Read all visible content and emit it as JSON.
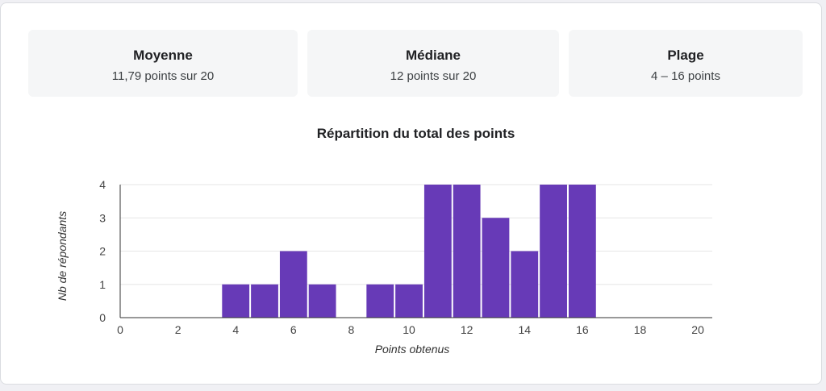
{
  "stats": [
    {
      "title": "Moyenne",
      "value": "11,79 points sur 20"
    },
    {
      "title": "Médiane",
      "value": "12 points sur 20"
    },
    {
      "title": "Plage",
      "value": "4 – 16 points"
    }
  ],
  "colors": {
    "bar": "#673ab7",
    "grid": "#e6e6e6",
    "axis": "#333333"
  },
  "chart_data": {
    "type": "bar",
    "title": "Répartition du total des points",
    "xlabel": "Points obtenus",
    "ylabel": "Nb de répondants",
    "x": [
      4,
      5,
      6,
      7,
      9,
      10,
      11,
      12,
      13,
      14,
      15,
      16
    ],
    "values": [
      1,
      1,
      2,
      1,
      1,
      1,
      4,
      4,
      3,
      2,
      4,
      4
    ],
    "xlim": [
      0,
      20.5
    ],
    "ylim": [
      0,
      4
    ],
    "xticks": [
      0,
      2,
      4,
      6,
      8,
      10,
      12,
      14,
      16,
      18,
      20
    ],
    "yticks": [
      0,
      1,
      2,
      3,
      4
    ],
    "grid": true,
    "legend": "none"
  }
}
